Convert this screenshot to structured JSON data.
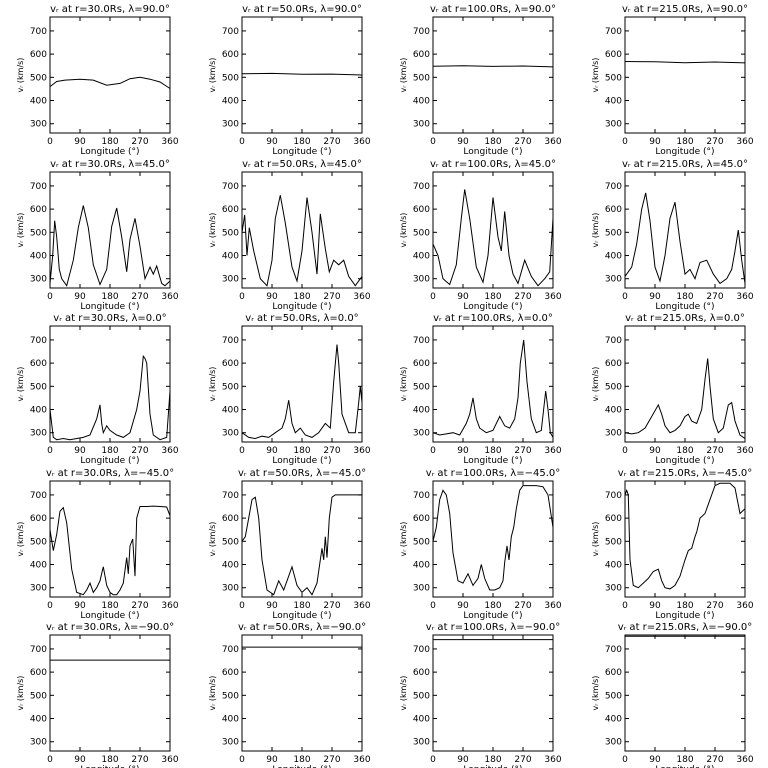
{
  "chart_data": {
    "type": "line",
    "grid": false,
    "xlabel": "Longitude  (°)",
    "ylabel": "vᵣ  (km/s)",
    "xlim": [
      0,
      360
    ],
    "ylim": [
      260,
      760
    ],
    "xticks": [
      "0",
      "90",
      "180",
      "270",
      "360"
    ],
    "yticks": [
      "300",
      "400",
      "500",
      "600",
      "700"
    ],
    "radii": [
      "30.0",
      "50.0",
      "100.0",
      "215.0"
    ],
    "latitudes": [
      "90.0",
      "45.0",
      "0.0",
      "-45.0",
      "-90.0"
    ],
    "panels": [
      [
        {
          "title": "vᵣ at r=30.0Rs, λ=90.0°",
          "x": [
            0,
            20,
            45,
            90,
            130,
            170,
            210,
            240,
            270,
            300,
            330,
            360
          ],
          "y": [
            460,
            482,
            488,
            492,
            488,
            466,
            474,
            494,
            500,
            492,
            480,
            452
          ]
        },
        {
          "title": "vᵣ at r=50.0Rs, λ=90.0°",
          "x": [
            0,
            90,
            180,
            270,
            360
          ],
          "y": [
            515,
            517,
            513,
            514,
            510
          ]
        },
        {
          "title": "vᵣ at r=100.0Rs, λ=90.0°",
          "x": [
            0,
            90,
            180,
            270,
            360
          ],
          "y": [
            548,
            550,
            547,
            549,
            545
          ]
        },
        {
          "title": "vᵣ at r=215.0Rs, λ=90.0°",
          "x": [
            0,
            90,
            180,
            270,
            360
          ],
          "y": [
            568,
            567,
            563,
            566,
            562
          ]
        }
      ],
      [
        {
          "title": "vᵣ at r=30.0Rs, λ=45.0°",
          "x": [
            0,
            8,
            14,
            20,
            28,
            35,
            50,
            70,
            85,
            100,
            115,
            130,
            150,
            170,
            185,
            200,
            215,
            230,
            240,
            255,
            270,
            285,
            300,
            310,
            320,
            335,
            345,
            360
          ],
          "y": [
            280,
            400,
            550,
            480,
            340,
            300,
            270,
            380,
            520,
            615,
            520,
            360,
            275,
            340,
            525,
            605,
            480,
            330,
            470,
            560,
            440,
            300,
            350,
            320,
            355,
            280,
            270,
            290
          ]
        },
        {
          "title": "vᵣ at r=50.0Rs, λ=45.0°",
          "x": [
            0,
            8,
            15,
            22,
            35,
            55,
            75,
            90,
            100,
            115,
            130,
            150,
            165,
            180,
            195,
            210,
            225,
            235,
            250,
            262,
            275,
            290,
            305,
            320,
            340,
            360
          ],
          "y": [
            500,
            575,
            400,
            520,
            420,
            300,
            270,
            380,
            560,
            660,
            540,
            350,
            290,
            420,
            650,
            500,
            320,
            580,
            430,
            330,
            380,
            360,
            380,
            310,
            270,
            310
          ]
        },
        {
          "title": "vᵣ at r=100.0Rs, λ=45.0°",
          "x": [
            0,
            15,
            30,
            50,
            70,
            85,
            95,
            110,
            130,
            150,
            165,
            180,
            195,
            205,
            215,
            228,
            240,
            255,
            275,
            295,
            315,
            335,
            350,
            360
          ],
          "y": [
            450,
            400,
            300,
            275,
            360,
            560,
            685,
            560,
            350,
            285,
            400,
            650,
            480,
            420,
            590,
            400,
            320,
            280,
            380,
            310,
            270,
            300,
            330,
            560
          ]
        },
        {
          "title": "vᵣ at r=215.0Rs, λ=45.0°",
          "x": [
            0,
            20,
            35,
            50,
            62,
            75,
            90,
            105,
            120,
            135,
            150,
            165,
            180,
            195,
            210,
            225,
            245,
            265,
            285,
            305,
            320,
            330,
            340,
            350,
            360
          ],
          "y": [
            310,
            350,
            450,
            600,
            670,
            550,
            350,
            290,
            400,
            560,
            630,
            460,
            320,
            340,
            300,
            370,
            380,
            320,
            280,
            300,
            340,
            420,
            510,
            380,
            280
          ]
        }
      ],
      [
        {
          "title": "vᵣ at r=30.0Rs, λ=0.0°",
          "x": [
            0,
            10,
            20,
            40,
            60,
            80,
            100,
            120,
            140,
            150,
            155,
            160,
            170,
            180,
            200,
            220,
            240,
            260,
            270,
            280,
            285,
            290,
            300,
            310,
            330,
            350,
            360
          ],
          "y": [
            400,
            280,
            270,
            275,
            270,
            275,
            280,
            290,
            360,
            420,
            340,
            300,
            330,
            310,
            290,
            280,
            300,
            400,
            480,
            630,
            620,
            600,
            380,
            290,
            270,
            280,
            480
          ]
        },
        {
          "title": "vᵣ at r=50.0Rs, λ=0.0°",
          "x": [
            0,
            20,
            40,
            60,
            80,
            100,
            120,
            130,
            140,
            150,
            160,
            175,
            190,
            210,
            230,
            250,
            265,
            275,
            285,
            290,
            300,
            320,
            340,
            350,
            355,
            360
          ],
          "y": [
            300,
            280,
            275,
            285,
            280,
            300,
            320,
            360,
            440,
            340,
            300,
            320,
            290,
            280,
            300,
            340,
            320,
            520,
            680,
            600,
            380,
            300,
            300,
            430,
            500,
            430
          ]
        },
        {
          "title": "vᵣ at r=100.0Rs, λ=0.0°",
          "x": [
            0,
            20,
            40,
            60,
            80,
            100,
            110,
            120,
            130,
            140,
            160,
            180,
            200,
            215,
            230,
            245,
            255,
            262,
            272,
            282,
            295,
            310,
            325,
            338,
            345,
            352,
            360
          ],
          "y": [
            300,
            290,
            295,
            300,
            290,
            340,
            380,
            450,
            360,
            320,
            300,
            310,
            370,
            330,
            320,
            360,
            450,
            600,
            700,
            520,
            360,
            300,
            310,
            480,
            400,
            300,
            280
          ]
        },
        {
          "title": "vᵣ at r=215.0Rs, λ=0.0°",
          "x": [
            0,
            20,
            40,
            60,
            80,
            100,
            110,
            120,
            135,
            150,
            165,
            180,
            190,
            200,
            215,
            230,
            240,
            248,
            255,
            265,
            280,
            295,
            310,
            320,
            330,
            345,
            360
          ],
          "y": [
            300,
            295,
            300,
            320,
            370,
            420,
            380,
            330,
            300,
            310,
            330,
            370,
            380,
            350,
            340,
            400,
            530,
            620,
            500,
            360,
            300,
            320,
            420,
            430,
            350,
            290,
            275
          ]
        }
      ],
      [
        {
          "title": "vᵣ at r=30.0Rs, λ=−45.0°",
          "x": [
            0,
            10,
            20,
            30,
            40,
            50,
            65,
            80,
            100,
            110,
            120,
            130,
            140,
            150,
            160,
            170,
            180,
            190,
            200,
            210,
            220,
            230,
            235,
            240,
            248,
            255,
            260,
            270,
            290,
            310,
            330,
            350,
            360
          ],
          "y": [
            550,
            460,
            530,
            630,
            645,
            580,
            380,
            280,
            270,
            290,
            320,
            280,
            300,
            330,
            390,
            310,
            280,
            270,
            270,
            290,
            320,
            430,
            360,
            480,
            510,
            350,
            600,
            650,
            650,
            652,
            650,
            648,
            610
          ]
        },
        {
          "title": "vᵣ at r=50.0Rs, λ=−45.0°",
          "x": [
            0,
            10,
            20,
            30,
            40,
            50,
            60,
            75,
            95,
            110,
            125,
            140,
            150,
            165,
            180,
            195,
            210,
            225,
            235,
            240,
            245,
            250,
            255,
            262,
            270,
            280,
            300,
            320,
            340,
            360
          ],
          "y": [
            500,
            520,
            600,
            680,
            690,
            600,
            420,
            290,
            270,
            330,
            290,
            350,
            390,
            310,
            280,
            300,
            270,
            320,
            420,
            470,
            420,
            520,
            430,
            600,
            690,
            700,
            700,
            700,
            700,
            700
          ]
        },
        {
          "title": "vᵣ at r=100.0Rs, λ=−45.0°",
          "x": [
            0,
            10,
            20,
            30,
            40,
            50,
            60,
            75,
            90,
            105,
            120,
            135,
            145,
            155,
            170,
            185,
            200,
            210,
            215,
            222,
            228,
            235,
            242,
            250,
            260,
            270,
            290,
            310,
            330,
            345,
            360
          ],
          "y": [
            500,
            560,
            680,
            720,
            700,
            620,
            450,
            330,
            320,
            360,
            310,
            340,
            400,
            340,
            290,
            290,
            300,
            330,
            410,
            480,
            420,
            520,
            560,
            640,
            720,
            740,
            740,
            740,
            735,
            700,
            560
          ]
        },
        {
          "title": "vᵣ at r=215.0Rs, λ=−45.0°",
          "x": [
            0,
            5,
            10,
            15,
            25,
            40,
            55,
            70,
            85,
            100,
            110,
            120,
            135,
            150,
            165,
            180,
            190,
            200,
            210,
            215,
            225,
            240,
            255,
            270,
            285,
            300,
            315,
            330,
            345,
            360
          ],
          "y": [
            700,
            720,
            700,
            420,
            310,
            300,
            320,
            340,
            370,
            380,
            330,
            300,
            295,
            310,
            350,
            420,
            460,
            470,
            520,
            540,
            600,
            620,
            680,
            740,
            750,
            750,
            750,
            730,
            620,
            640
          ]
        }
      ],
      [
        {
          "title": "vᵣ at r=30.0Rs, λ=−90.0°",
          "x": [
            0,
            360
          ],
          "y": [
            652,
            652
          ]
        },
        {
          "title": "vᵣ at r=50.0Rs, λ=−90.0°",
          "x": [
            0,
            360
          ],
          "y": [
            708,
            708
          ]
        },
        {
          "title": "vᵣ at r=100.0Rs, λ=−90.0°",
          "x": [
            0,
            360
          ],
          "y": [
            740,
            740
          ]
        },
        {
          "title": "vᵣ at r=215.0Rs, λ=−90.0°",
          "x": [
            0,
            360
          ],
          "y": [
            755,
            755
          ]
        }
      ]
    ]
  }
}
